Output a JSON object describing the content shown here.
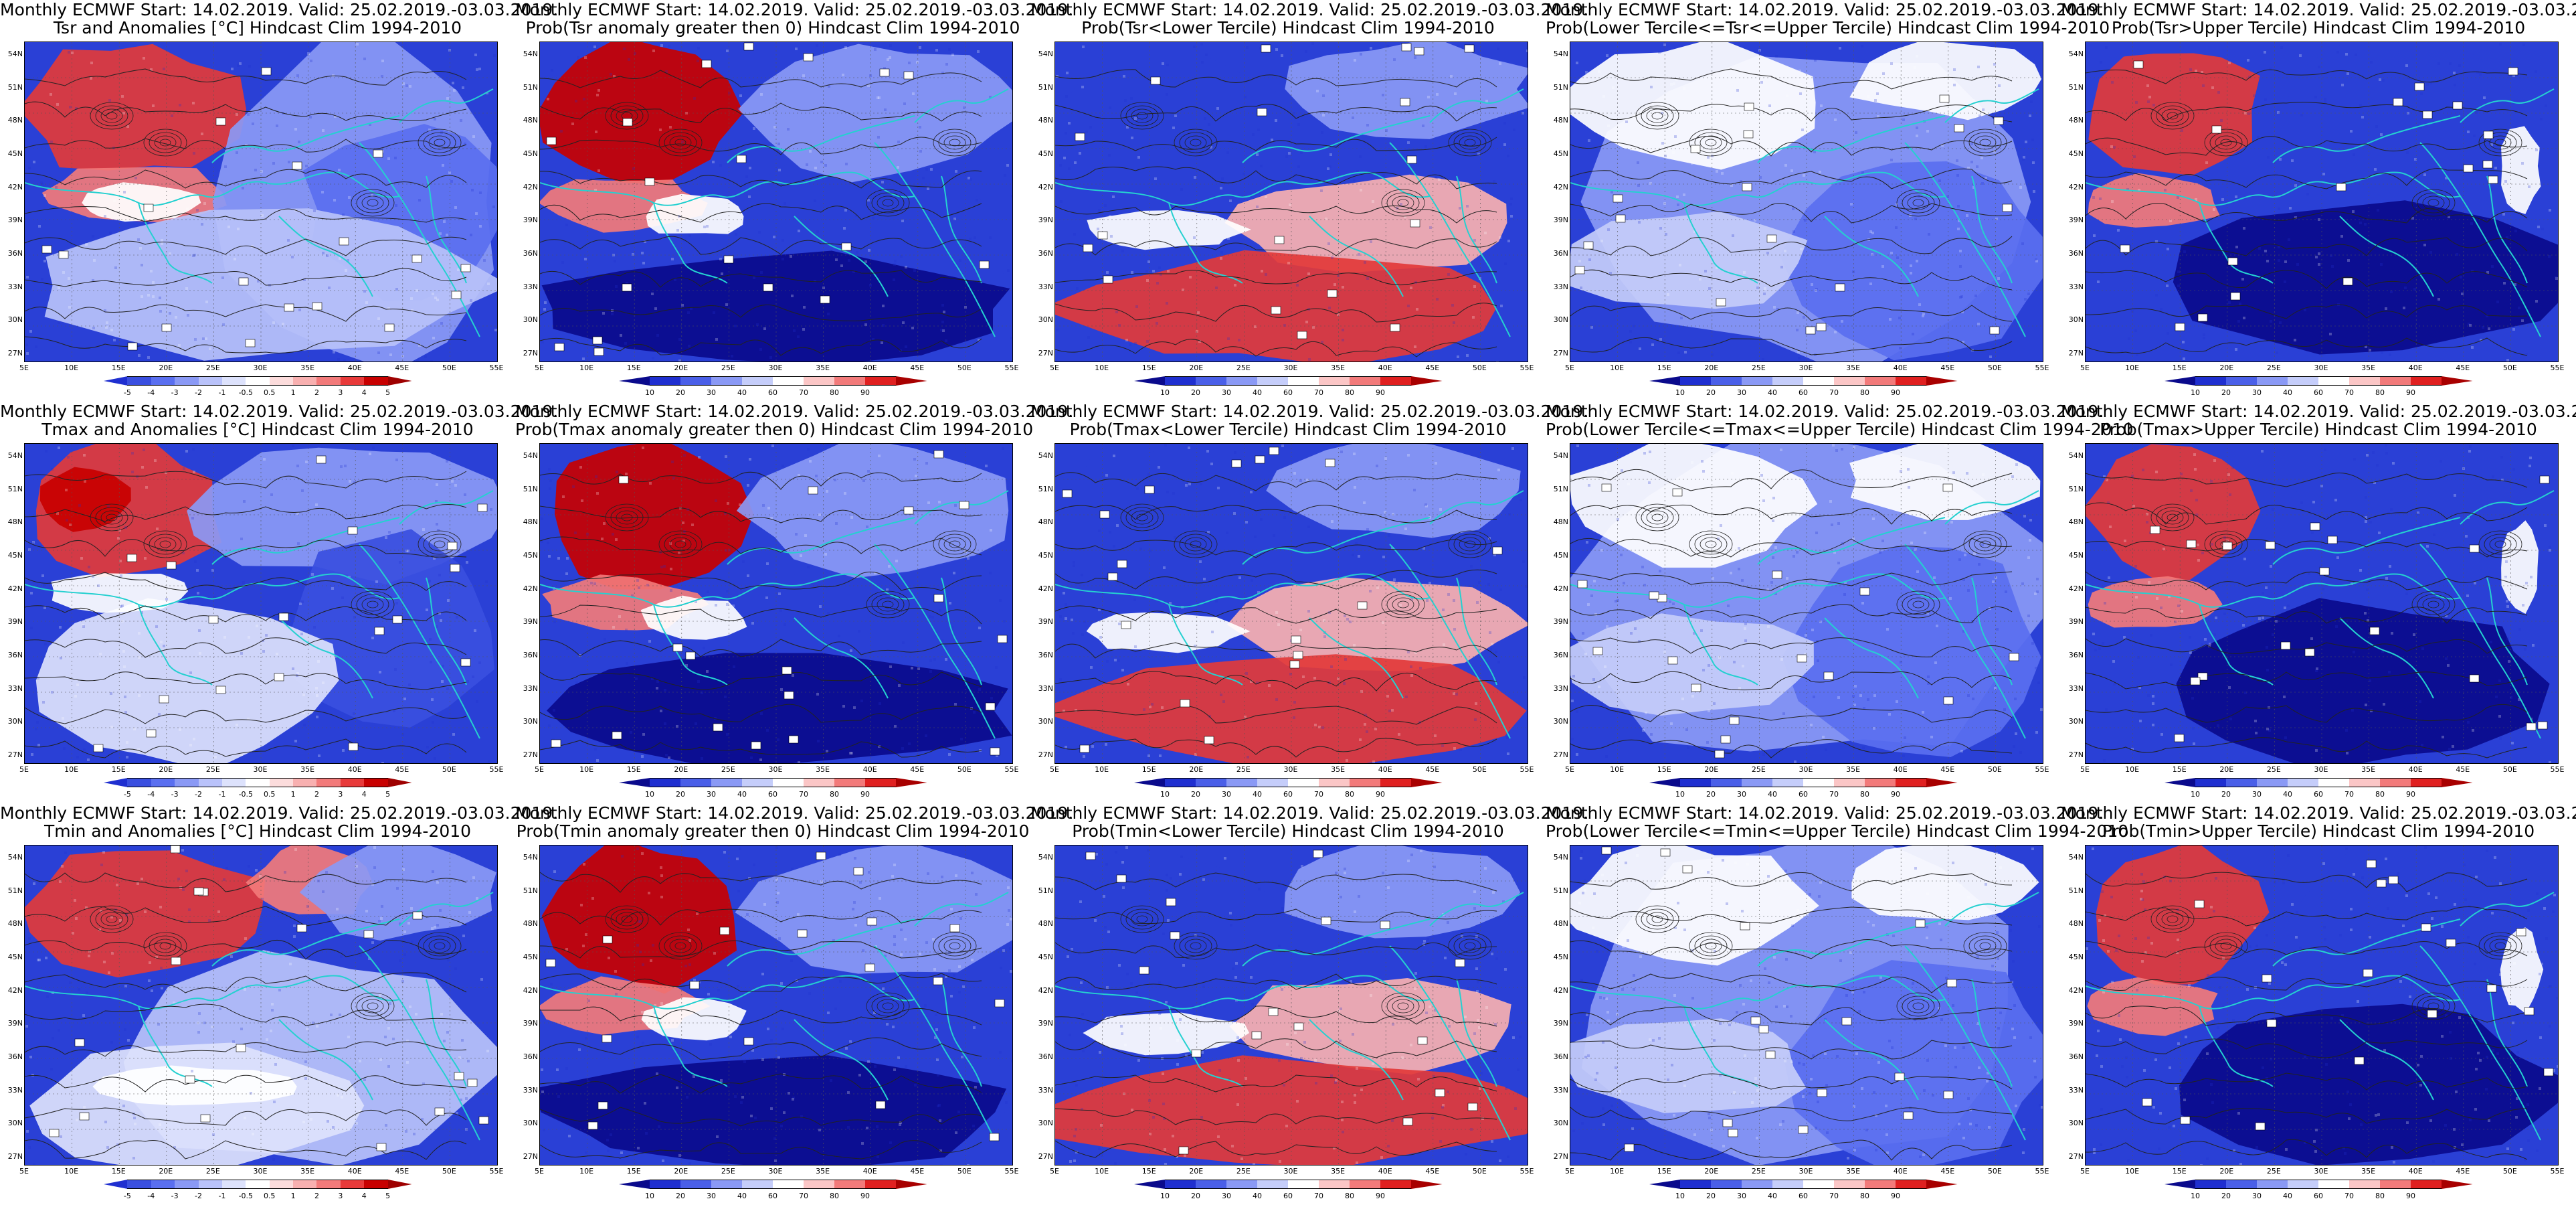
{
  "header_line": "Monthly ECMWF Start: 14.02.2019. Valid: 25.02.2019.-03.03.2019.",
  "lat_labels": [
    "54N",
    "51N",
    "48N",
    "45N",
    "42N",
    "39N",
    "36N",
    "33N",
    "30N",
    "27N"
  ],
  "lon_labels": [
    "5E",
    "10E",
    "15E",
    "20E",
    "25E",
    "30E",
    "35E",
    "40E",
    "45E",
    "50E",
    "55E"
  ],
  "anomaly_scale": {
    "labels": [
      "-5",
      "-4",
      "-3",
      "-2",
      "-1",
      "-0.5",
      "0.5",
      "1",
      "2",
      "3",
      "4",
      "5"
    ],
    "colors": [
      "#1f2fd0",
      "#3a4fe0",
      "#5a6ff0",
      "#8a99f5",
      "#b9c2fa",
      "#dde2fc",
      "#ffffff",
      "#fcdcdc",
      "#f8b0b0",
      "#f27a7a",
      "#e83a3a",
      "#c80000",
      "#9e0000"
    ]
  },
  "prob_scale": {
    "labels": [
      "10",
      "20",
      "30",
      "40",
      "60",
      "70",
      "80",
      "90"
    ],
    "colors": [
      "#0a0a8c",
      "#1f2fd0",
      "#4a5fe8",
      "#8a99f5",
      "#c5cdfa",
      "#ffffff",
      "#fbc6c6",
      "#f27a7a",
      "#e02020",
      "#a80000"
    ]
  },
  "panels": [
    {
      "title": "Tsr and Anomalies [°C] Hindcast Clim 1994-2010",
      "scale": "anomaly",
      "pattern": "anom_tsr"
    },
    {
      "title": "Prob(Tsr anomaly greater then 0) Hindcast Clim 1994-2010",
      "scale": "prob",
      "pattern": "gt0"
    },
    {
      "title": "Prob(Tsr<Lower Tercile) Hindcast Clim 1994-2010",
      "scale": "prob",
      "pattern": "lower"
    },
    {
      "title": "Prob(Lower Tercile<=Tsr<=Upper Tercile) Hindcast Clim 1994-2010",
      "scale": "prob",
      "pattern": "middle"
    },
    {
      "title": "Prob(Tsr>Upper Tercile) Hindcast Clim 1994-2010",
      "scale": "prob",
      "pattern": "upper"
    },
    {
      "title": "Tmax and Anomalies [°C] Hindcast Clim 1994-2010",
      "scale": "anomaly",
      "pattern": "anom_tmax"
    },
    {
      "title": "Prob(Tmax anomaly greater then 0) Hindcast Clim 1994-2010",
      "scale": "prob",
      "pattern": "gt0"
    },
    {
      "title": "Prob(Tmax<Lower Tercile) Hindcast Clim 1994-2010",
      "scale": "prob",
      "pattern": "lower"
    },
    {
      "title": "Prob(Lower Tercile<=Tmax<=Upper Tercile) Hindcast Clim 1994-2010",
      "scale": "prob",
      "pattern": "middle"
    },
    {
      "title": "Prob(Tmax>Upper Tercile) Hindcast Clim 1994-2010",
      "scale": "prob",
      "pattern": "upper"
    },
    {
      "title": "Tmin and Anomalies [°C] Hindcast Clim 1994-2010",
      "scale": "anomaly",
      "pattern": "anom_tmin"
    },
    {
      "title": "Prob(Tmin anomaly greater then 0) Hindcast Clim 1994-2010",
      "scale": "prob",
      "pattern": "gt0"
    },
    {
      "title": "Prob(Tmin<Lower Tercile) Hindcast Clim 1994-2010",
      "scale": "prob",
      "pattern": "lower"
    },
    {
      "title": "Prob(Lower Tercile<=Tmin<=Upper Tercile) Hindcast Clim 1994-2010",
      "scale": "prob",
      "pattern": "middle"
    },
    {
      "title": "Prob(Tmin>Upper Tercile) Hindcast Clim 1994-2010",
      "scale": "prob",
      "pattern": "upper"
    }
  ]
}
